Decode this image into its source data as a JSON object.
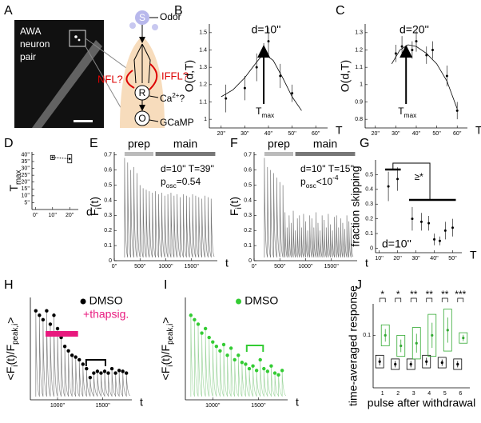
{
  "panel_labels": [
    "A",
    "B",
    "C",
    "D",
    "E",
    "F",
    "G",
    "H",
    "I",
    "J"
  ],
  "diagram": {
    "micrograph_text": [
      "AWA",
      "neuron",
      "pair"
    ],
    "nodes": [
      "S",
      "R",
      "O"
    ],
    "odor": "Odor",
    "iffl": "IFFL?",
    "nfl": "NFL?",
    "ca": "Ca",
    "ca_sup": "2+",
    "ca_q": "?",
    "gcamp": "GCaMP"
  },
  "chart_data": [
    {
      "type": "errorbar",
      "title": "d=10''",
      "xlabel": "T",
      "ylabel": "O(d,T)",
      "annotation": [
        "T",
        "max"
      ],
      "tmax": 38,
      "x": [
        22,
        30,
        35,
        38,
        40,
        45,
        50
      ],
      "values": [
        1.12,
        1.18,
        1.3,
        1.38,
        1.45,
        1.25,
        1.15
      ],
      "errors": [
        0.08,
        0.07,
        0.08,
        0.06,
        0.08,
        0.07,
        0.05
      ],
      "fit": {
        "x": [
          20,
          25,
          30,
          35,
          38,
          42,
          46,
          50,
          54
        ],
        "values": [
          1.13,
          1.17,
          1.24,
          1.33,
          1.38,
          1.34,
          1.24,
          1.13,
          1.05
        ]
      },
      "xlim": [
        15,
        65
      ],
      "ylim": [
        0.95,
        1.55
      ],
      "xticks": [
        {
          "value": 20,
          "label": "20''"
        },
        {
          "value": 30,
          "label": "30''"
        },
        {
          "value": 40,
          "label": "40''"
        },
        {
          "value": 50,
          "label": "50''"
        },
        {
          "value": 60,
          "label": "60''"
        }
      ],
      "yticks": [
        1,
        1.1,
        1.2,
        1.3,
        1.4,
        1.5
      ]
    },
    {
      "type": "errorbar",
      "title": "d=20''",
      "xlabel": "T",
      "ylabel": "O(d,T)",
      "annotation": [
        "T",
        "max"
      ],
      "tmax": 35,
      "x": [
        30,
        33,
        38,
        40,
        45,
        48,
        55,
        60
      ],
      "values": [
        1.18,
        1.22,
        1.2,
        1.25,
        1.17,
        1.2,
        1.05,
        0.85
      ],
      "errors": [
        0.05,
        0.06,
        0.05,
        0.06,
        0.05,
        0.05,
        0.06,
        0.05
      ],
      "fit": {
        "x": [
          28,
          32,
          36,
          40,
          45,
          50,
          55,
          60
        ],
        "values": [
          1.12,
          1.2,
          1.23,
          1.22,
          1.18,
          1.12,
          1.02,
          0.86
        ]
      },
      "xlim": [
        15,
        65
      ],
      "ylim": [
        0.75,
        1.35
      ],
      "xticks": [
        {
          "value": 20,
          "label": "20''"
        },
        {
          "value": 30,
          "label": "30''"
        },
        {
          "value": 40,
          "label": "40''"
        },
        {
          "value": 50,
          "label": "50''"
        },
        {
          "value": 60,
          "label": "60''"
        }
      ],
      "yticks": [
        0.8,
        0.9,
        1,
        1.1,
        1.2,
        1.3
      ]
    },
    {
      "type": "box",
      "xlabel": "d",
      "ylabel": [
        "T",
        "max"
      ],
      "x": [
        10,
        20
      ],
      "values": [
        38,
        37
      ],
      "errors": [
        1.5,
        3
      ],
      "xlim": [
        -2,
        25
      ],
      "ylim": [
        0,
        42
      ],
      "xticks": [
        {
          "value": 0,
          "label": "0''"
        },
        {
          "value": 10,
          "label": "10''"
        },
        {
          "value": 20,
          "label": "20''"
        }
      ],
      "yticks": [
        {
          "value": 5,
          "label": "5''"
        },
        {
          "value": 10,
          "label": "10''"
        },
        {
          "value": 15,
          "label": "15''"
        },
        {
          "value": 20,
          "label": "20''"
        },
        {
          "value": 25,
          "label": "25''"
        },
        {
          "value": 30,
          "label": "30''"
        },
        {
          "value": 35,
          "label": "35''"
        },
        {
          "value": 40,
          "label": "40''"
        }
      ]
    },
    {
      "type": "trace",
      "xlabel": "t",
      "ylabel": [
        "F",
        "i",
        "(t)"
      ],
      "prep": "prep",
      "main": "main",
      "params": "d=10'' T=39''",
      "pval": [
        "p",
        "osc",
        "=0.54"
      ],
      "x": [
        200,
        260,
        320,
        380,
        440,
        500,
        560,
        620,
        680,
        740,
        800,
        860,
        920,
        980,
        1040,
        1100,
        1160,
        1220,
        1280,
        1340,
        1400,
        1460,
        1520,
        1580,
        1640,
        1700,
        1760,
        1820,
        1880
      ],
      "values": [
        0.68,
        0.65,
        0.6,
        0.62,
        0.58,
        0.5,
        0.48,
        0.47,
        0.46,
        0.45,
        0.46,
        0.44,
        0.45,
        0.43,
        0.44,
        0.45,
        0.43,
        0.44,
        0.42,
        0.44,
        0.43,
        0.42,
        0.44,
        0.43,
        0.42,
        0.41,
        0.43,
        0.42,
        0.41
      ],
      "xlim": [
        0,
        2000
      ],
      "ylim": [
        0,
        0.72
      ],
      "xticks": [
        {
          "value": 0,
          "label": "0''"
        },
        {
          "value": 500,
          "label": "500''"
        },
        {
          "value": 1000,
          "label": "1000''"
        },
        {
          "value": 1500,
          "label": "1500''"
        }
      ],
      "yticks": [
        0,
        0.1,
        0.2,
        0.3,
        0.4,
        0.5,
        0.6,
        0.7
      ]
    },
    {
      "type": "trace",
      "xlabel": "t",
      "ylabel": [
        "F",
        "i",
        "(t)"
      ],
      "prep": "prep",
      "main": "main",
      "params": "d=10'' T=15''",
      "pval": [
        "p",
        "osc",
        "<10"
      ],
      "pval_sup": "-4",
      "x": [
        200,
        260,
        320,
        380,
        440,
        500,
        560,
        600,
        640,
        680,
        720,
        760,
        800,
        840,
        880,
        920,
        960,
        1000,
        1040,
        1080,
        1120,
        1160,
        1200,
        1240,
        1280,
        1320,
        1360,
        1400,
        1440,
        1480,
        1520,
        1560,
        1600,
        1640,
        1680,
        1720,
        1760,
        1800,
        1840,
        1880
      ],
      "values": [
        0.68,
        0.62,
        0.6,
        0.58,
        0.55,
        0.52,
        0.5,
        0.32,
        0.22,
        0.3,
        0.25,
        0.33,
        0.2,
        0.28,
        0.3,
        0.22,
        0.31,
        0.26,
        0.2,
        0.3,
        0.28,
        0.22,
        0.32,
        0.25,
        0.2,
        0.3,
        0.27,
        0.22,
        0.31,
        0.24,
        0.2,
        0.29,
        0.3,
        0.22,
        0.28,
        0.25,
        0.21,
        0.3,
        0.26,
        0.22
      ],
      "xlim": [
        0,
        2000
      ],
      "ylim": [
        0,
        0.72
      ],
      "xticks": [
        {
          "value": 0,
          "label": "0''"
        },
        {
          "value": 500,
          "label": "500''"
        },
        {
          "value": 1000,
          "label": "1000''"
        },
        {
          "value": 1500,
          "label": "1500''"
        }
      ],
      "yticks": [
        0,
        0.1,
        0.2,
        0.3,
        0.4,
        0.5,
        0.6,
        0.7
      ]
    },
    {
      "type": "errorbar",
      "xlabel": "T",
      "ylabel": "fraction skipping",
      "annotation_text": "d=10''",
      "significance": "≥*",
      "x": [
        15,
        20,
        28,
        33,
        37,
        40,
        43,
        46,
        50
      ],
      "values": [
        0.42,
        0.47,
        0.2,
        0.18,
        0.17,
        0.06,
        0.05,
        0.12,
        0.14
      ],
      "errors": [
        0.1,
        0.08,
        0.08,
        0.06,
        0.05,
        0.04,
        0.03,
        0.06,
        0.06
      ],
      "xlim": [
        8,
        55
      ],
      "ylim": [
        -0.03,
        0.6
      ],
      "xticks": [
        {
          "value": 10,
          "label": "10''"
        },
        {
          "value": 20,
          "label": "20''"
        },
        {
          "value": 30,
          "label": "30''"
        },
        {
          "value": 40,
          "label": "40''"
        },
        {
          "value": 50,
          "label": "50''"
        }
      ],
      "yticks": [
        0,
        0.1,
        0.2,
        0.3,
        0.4,
        0.5
      ]
    },
    {
      "type": "dots",
      "xlabel": "t",
      "ylabel": [
        "<F",
        "i",
        "(t)/F",
        "peak,i",
        ">"
      ],
      "bar_label": "+thapsig.",
      "bar_color": "#e8197e",
      "series": [
        {
          "name": "DMSO",
          "color": "#000000",
          "x": [
            760,
            800,
            840,
            880,
            920,
            960,
            1000,
            1040,
            1080,
            1120,
            1160,
            1200,
            1240,
            1280,
            1320,
            1360,
            1400,
            1440,
            1480,
            1520,
            1560,
            1600,
            1640,
            1680,
            1720,
            1760
          ],
          "values": [
            1,
            0.95,
            0.9,
            1,
            0.85,
            0.95,
            0.8,
            0.7,
            0.6,
            0.55,
            0.5,
            0.48,
            0.45,
            0.4,
            0.35,
            0.25,
            0.3,
            0.32,
            0.3,
            0.32,
            0.3,
            0.35,
            0.3,
            0.33,
            0.32,
            0.3
          ]
        }
      ],
      "xlim": [
        700,
        1820
      ],
      "ylim": [
        0,
        1.15
      ],
      "xticks": [
        {
          "value": 1000,
          "label": "1000''"
        },
        {
          "value": 1500,
          "label": "1500''"
        }
      ]
    },
    {
      "type": "dots",
      "xlabel": "t",
      "ylabel": [
        "<F",
        "i",
        "(t)/F",
        "peak,i",
        ">"
      ],
      "series": [
        {
          "name": "DMSO",
          "color": "#33cc33",
          "x": [
            760,
            800,
            840,
            880,
            920,
            960,
            1000,
            1040,
            1080,
            1120,
            1160,
            1200,
            1240,
            1280,
            1320,
            1360,
            1400,
            1440,
            1480,
            1520,
            1560,
            1600,
            1640,
            1680,
            1720,
            1760
          ],
          "values": [
            0.95,
            0.9,
            0.85,
            0.75,
            0.8,
            0.7,
            0.65,
            0.6,
            0.55,
            0.62,
            0.5,
            0.58,
            0.45,
            0.5,
            0.42,
            0.4,
            0.35,
            0.38,
            0.33,
            0.45,
            0.35,
            0.32,
            0.38,
            0.3,
            0.28,
            0.33
          ]
        }
      ],
      "xlim": [
        700,
        1820
      ],
      "ylim": [
        0,
        1.15
      ],
      "xticks": [
        {
          "value": 1000,
          "label": "1000''"
        },
        {
          "value": 1500,
          "label": "1500''"
        }
      ]
    },
    {
      "type": "boxes",
      "xlabel": "pulse after withdrawal",
      "ylabel": "time-averaged response",
      "stars": [
        "*",
        "*",
        "**",
        "**",
        "**",
        "***"
      ],
      "categories": [
        1,
        2,
        3,
        4,
        5,
        6
      ],
      "series": [
        {
          "color": "#000000",
          "values": [
            0.05,
            0.045,
            0.045,
            0.05,
            0.048,
            0.045
          ],
          "errors": [
            0.012,
            0.01,
            0.01,
            0.012,
            0.01,
            0.01
          ]
        },
        {
          "color": "#33aa33",
          "values": [
            0.1,
            0.08,
            0.085,
            0.1,
            0.11,
            0.095
          ],
          "errors": [
            0.02,
            0.02,
            0.03,
            0.04,
            0.04,
            0.01
          ]
        }
      ],
      "xlim": [
        0.4,
        6.6
      ],
      "ylim": [
        0,
        0.16
      ],
      "yticks": [
        0.1
      ]
    }
  ]
}
